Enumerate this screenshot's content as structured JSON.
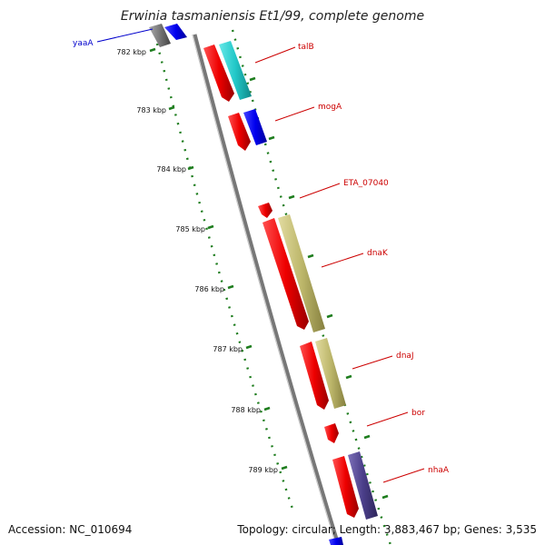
{
  "title": "Erwinia tasmaniensis Et1/99, complete genome",
  "footer": {
    "accession": "Accession: NC_010694",
    "topology": "Topology: circular; Length: 3,883,467 bp; Genes: 3,535"
  },
  "ruler": [
    "782 kbp",
    "783 kbp",
    "784 kbp",
    "785 kbp",
    "786 kbp",
    "787 kbp",
    "788 kbp",
    "789 kbp"
  ],
  "genes": [
    {
      "name": "yaaA",
      "color": "#0000cc"
    },
    {
      "name": "talB",
      "color": "#cc0000"
    },
    {
      "name": "mogA",
      "color": "#cc0000"
    },
    {
      "name": "ETA_07040",
      "color": "#cc0000"
    },
    {
      "name": "dnaK",
      "color": "#cc0000"
    },
    {
      "name": "dnaJ",
      "color": "#cc0000"
    },
    {
      "name": "bor",
      "color": "#cc0000"
    },
    {
      "name": "nhaA",
      "color": "#cc0000"
    }
  ],
  "colors": {
    "backbone": "#888888",
    "tick": "#1e7d1e",
    "cds": "#ff0000",
    "cyan": "#22cccc",
    "blue": "#0000ee",
    "khaki": "#bdb76b",
    "slate": "#4b3f8a",
    "gray": "#666666"
  }
}
